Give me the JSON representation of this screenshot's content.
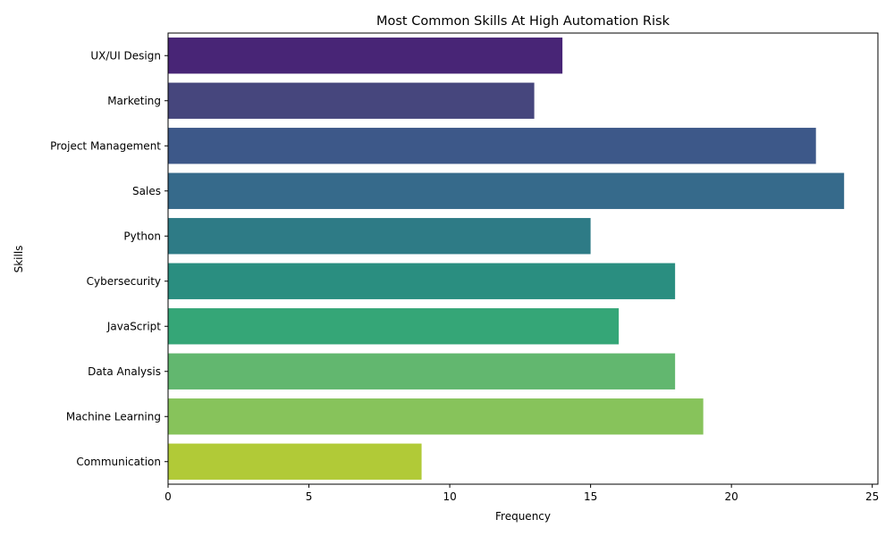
{
  "chart_data": {
    "type": "bar",
    "orientation": "horizontal",
    "title": "Most Common Skills At High Automation Risk",
    "xlabel": "Frequency",
    "ylabel": "Skills",
    "xlim": [
      0,
      25.2
    ],
    "xticks": [
      0,
      5,
      10,
      15,
      20,
      25
    ],
    "categories": [
      "UX/UI Design",
      "Marketing",
      "Project Management",
      "Sales",
      "Python",
      "Cybersecurity",
      "JavaScript",
      "Data Analysis",
      "Machine Learning",
      "Communication"
    ],
    "values": [
      14,
      13,
      23,
      24,
      15,
      18,
      16,
      18,
      19,
      9
    ],
    "colors": [
      "#482576",
      "#46467d",
      "#3d5889",
      "#366a8b",
      "#2e7b86",
      "#2a8e80",
      "#35a677",
      "#62b76f",
      "#87c35b",
      "#b1ca37"
    ],
    "grid": false,
    "legend": "none"
  }
}
